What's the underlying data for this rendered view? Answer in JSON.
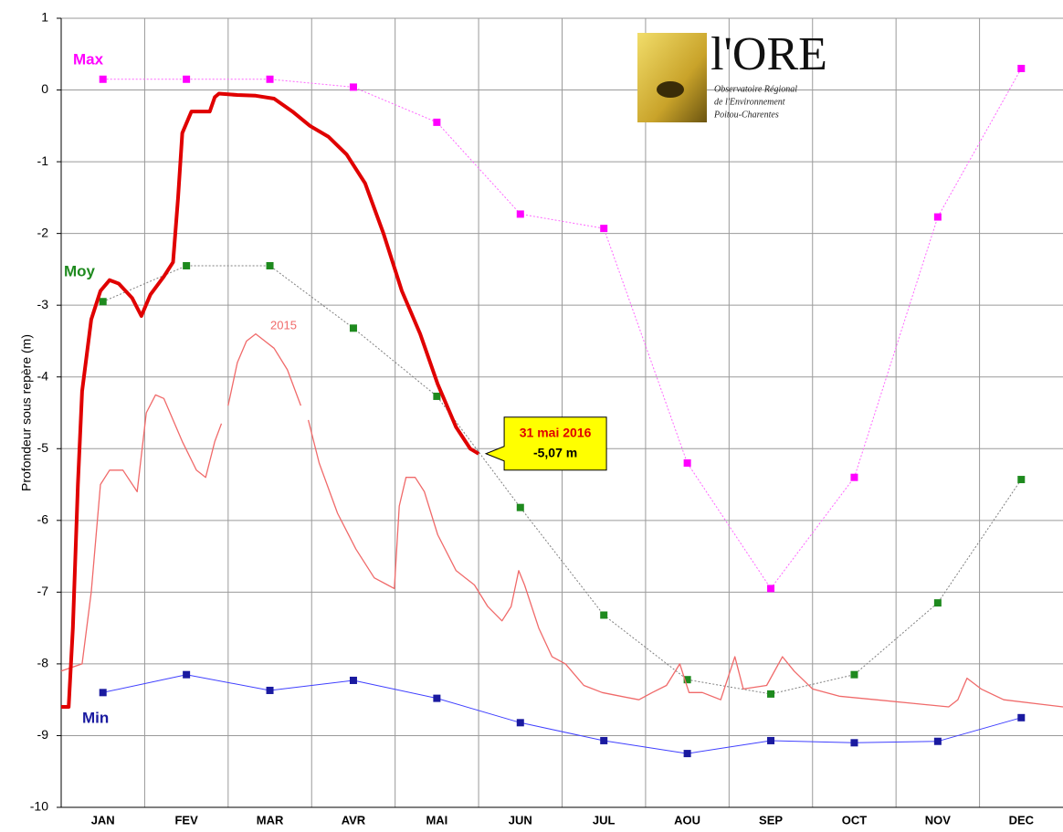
{
  "chart_data": {
    "type": "line",
    "y_label": "Profondeur sous repère (m)",
    "categories": [
      "JAN",
      "FEV",
      "MAR",
      "AVR",
      "MAI",
      "JUN",
      "JUL",
      "AOU",
      "SEP",
      "OCT",
      "NOV",
      "DEC"
    ],
    "xlim": [
      0,
      12
    ],
    "ylim": [
      -10,
      1
    ],
    "yticks": [
      1,
      0,
      -1,
      -2,
      -3,
      -4,
      -5,
      -6,
      -7,
      -8,
      -9,
      -10
    ],
    "grid": true,
    "series": [
      {
        "name": "Max",
        "color": "#ff00ff",
        "line_color": "#ff66ff",
        "dashed": true,
        "markers": true,
        "width": 1,
        "x": [
          0.5,
          1.5,
          2.5,
          3.5,
          4.5,
          5.5,
          6.5,
          7.5,
          8.5,
          9.5,
          10.5,
          11.5
        ],
        "values": [
          0.15,
          0.15,
          0.15,
          0.04,
          -0.45,
          -1.73,
          -1.93,
          -5.2,
          -6.95,
          -5.4,
          -1.77,
          0.3
        ]
      },
      {
        "name": "Moy",
        "color": "#1e8a1e",
        "line_color": "#808080",
        "dashed": true,
        "markers": true,
        "width": 1,
        "x": [
          0.5,
          1.5,
          2.5,
          3.5,
          4.5,
          5.5,
          6.5,
          7.5,
          8.5,
          9.5,
          10.5,
          11.5
        ],
        "values": [
          -2.95,
          -2.45,
          -2.45,
          -3.32,
          -4.27,
          -5.82,
          -7.32,
          -8.22,
          -8.42,
          -8.15,
          -7.15,
          -5.43
        ]
      },
      {
        "name": "Min",
        "color": "#1a1aa0",
        "line_color": "#4040ff",
        "dashed": false,
        "markers": true,
        "width": 1,
        "x": [
          0.5,
          1.5,
          2.5,
          3.5,
          4.5,
          5.5,
          6.5,
          7.5,
          8.5,
          9.5,
          10.5,
          11.5
        ],
        "values": [
          -8.4,
          -8.15,
          -8.37,
          -8.23,
          -8.48,
          -8.82,
          -9.07,
          -9.25,
          -9.07,
          -9.1,
          -9.08,
          -8.75
        ]
      },
      {
        "name": "2015",
        "color": "#f06a6a",
        "line_color": "#f06a6a",
        "dashed": false,
        "markers": false,
        "width": 1.3,
        "x": [
          0,
          0.25,
          0.36,
          0.47,
          0.58,
          0.74,
          0.91,
          1.02,
          1.13,
          1.23,
          1.45,
          1.62,
          1.73,
          1.84,
          1.92,
          1.96,
          2.0,
          2.11,
          2.22,
          2.33,
          2.44,
          2.55,
          2.71,
          2.87,
          2.92,
          2.96,
          3.09,
          3.31,
          3.53,
          3.75,
          3.91,
          3.99,
          4.05,
          4.13,
          4.24,
          4.35,
          4.51,
          4.73,
          4.95,
          5.11,
          5.28,
          5.39,
          5.48,
          5.55,
          5.72,
          5.88,
          6.04,
          6.26,
          6.48,
          6.7,
          6.92,
          7.08,
          7.25,
          7.41,
          7.52,
          7.68,
          7.9,
          8.07,
          8.17,
          8.45,
          8.64,
          8.78,
          9.0,
          9.32,
          9.76,
          10.2,
          10.63,
          10.74,
          10.85,
          11.02,
          11.29,
          12
        ],
        "values": [
          -8.1,
          -8.0,
          -7.0,
          -5.5,
          -5.3,
          -5.3,
          -5.6,
          -4.5,
          -4.25,
          -4.3,
          -4.9,
          -5.3,
          -5.4,
          -4.9,
          -4.65,
          null,
          -4.4,
          -3.8,
          -3.5,
          -3.4,
          -3.5,
          -3.6,
          -3.9,
          -4.4,
          null,
          -4.6,
          -5.2,
          -5.9,
          -6.4,
          -6.8,
          -6.9,
          -6.95,
          -5.8,
          -5.4,
          -5.4,
          -5.6,
          -6.2,
          -6.7,
          -6.9,
          -7.2,
          -7.4,
          -7.2,
          -6.7,
          -6.9,
          -7.5,
          -7.9,
          -8.0,
          -8.3,
          -8.4,
          -8.45,
          -8.5,
          -8.4,
          -8.3,
          -8.0,
          -8.4,
          -8.4,
          -8.5,
          -7.9,
          -8.35,
          -8.3,
          -7.9,
          -8.1,
          -8.35,
          -8.45,
          -8.5,
          -8.55,
          -8.6,
          -8.5,
          -8.2,
          -8.35,
          -8.5,
          -8.6
        ]
      },
      {
        "name": "2016",
        "color": "#e00000",
        "line_color": "#e00000",
        "dashed": false,
        "markers": false,
        "width": 4,
        "x": [
          0,
          0.09,
          0.14,
          0.2,
          0.25,
          0.36,
          0.47,
          0.58,
          0.69,
          0.85,
          0.96,
          1.07,
          1.23,
          1.34,
          1.4,
          1.45,
          1.56,
          1.67,
          1.78,
          1.84,
          1.89,
          2.11,
          2.33,
          2.55,
          2.77,
          2.98,
          3.2,
          3.42,
          3.64,
          3.86,
          4.08,
          4.3,
          4.51,
          4.73,
          4.9,
          5.0
        ],
        "values": [
          -8.6,
          -8.6,
          -7.5,
          -5.5,
          -4.2,
          -3.2,
          -2.8,
          -2.65,
          -2.7,
          -2.9,
          -3.15,
          -2.85,
          -2.6,
          -2.4,
          -1.5,
          -0.6,
          -0.3,
          -0.3,
          -0.3,
          -0.1,
          -0.05,
          -0.07,
          -0.08,
          -0.12,
          -0.3,
          -0.5,
          -0.65,
          -0.9,
          -1.3,
          -2.0,
          -2.8,
          -3.4,
          -4.1,
          -4.7,
          -5.0,
          -5.07
        ]
      }
    ],
    "annotation": {
      "lines": [
        "31 mai 2016",
        "-5,07 m"
      ]
    },
    "logo": {
      "title": "l'ORE",
      "lines": [
        "Observatoire Régional",
        "de l'Environnement",
        "Poitou-Charentes"
      ]
    }
  }
}
